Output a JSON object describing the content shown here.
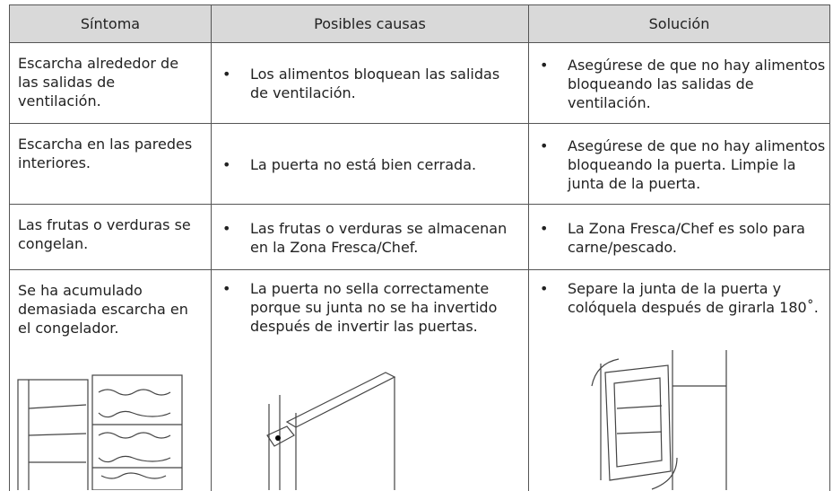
{
  "table": {
    "header": [
      "Síntoma",
      "Posibles causas",
      "Solución"
    ],
    "rows": [
      {
        "symptom": "Escarcha alrededor de las salidas de ventilación.",
        "cause": "Los alimentos bloquean las salidas de ventilación.",
        "solution": "Asegúrese de que no hay alimentos bloqueando las salidas de ventilación."
      },
      {
        "symptom": "Escarcha en las paredes interiores.",
        "cause": "La puerta no está bien cerrada.",
        "solution": "Asegúrese de que no hay alimentos bloqueando la puerta. Limpie la junta de la puerta."
      },
      {
        "symptom": "Las frutas o verduras se congelan.",
        "cause": "Las frutas o verduras se almacenan en la Zona Fresca/Chef.",
        "solution": "La Zona Fresca/Chef es solo para carne/pescado."
      },
      {
        "symptom": "Se ha acumulado demasiada escarcha en el congelador.",
        "cause": "La puerta no sella correctamente porque su junta no se ha invertido después de invertir las puertas.",
        "solution": "Separe la junta de la puerta y colóquela después de girarla 180˚."
      }
    ]
  }
}
